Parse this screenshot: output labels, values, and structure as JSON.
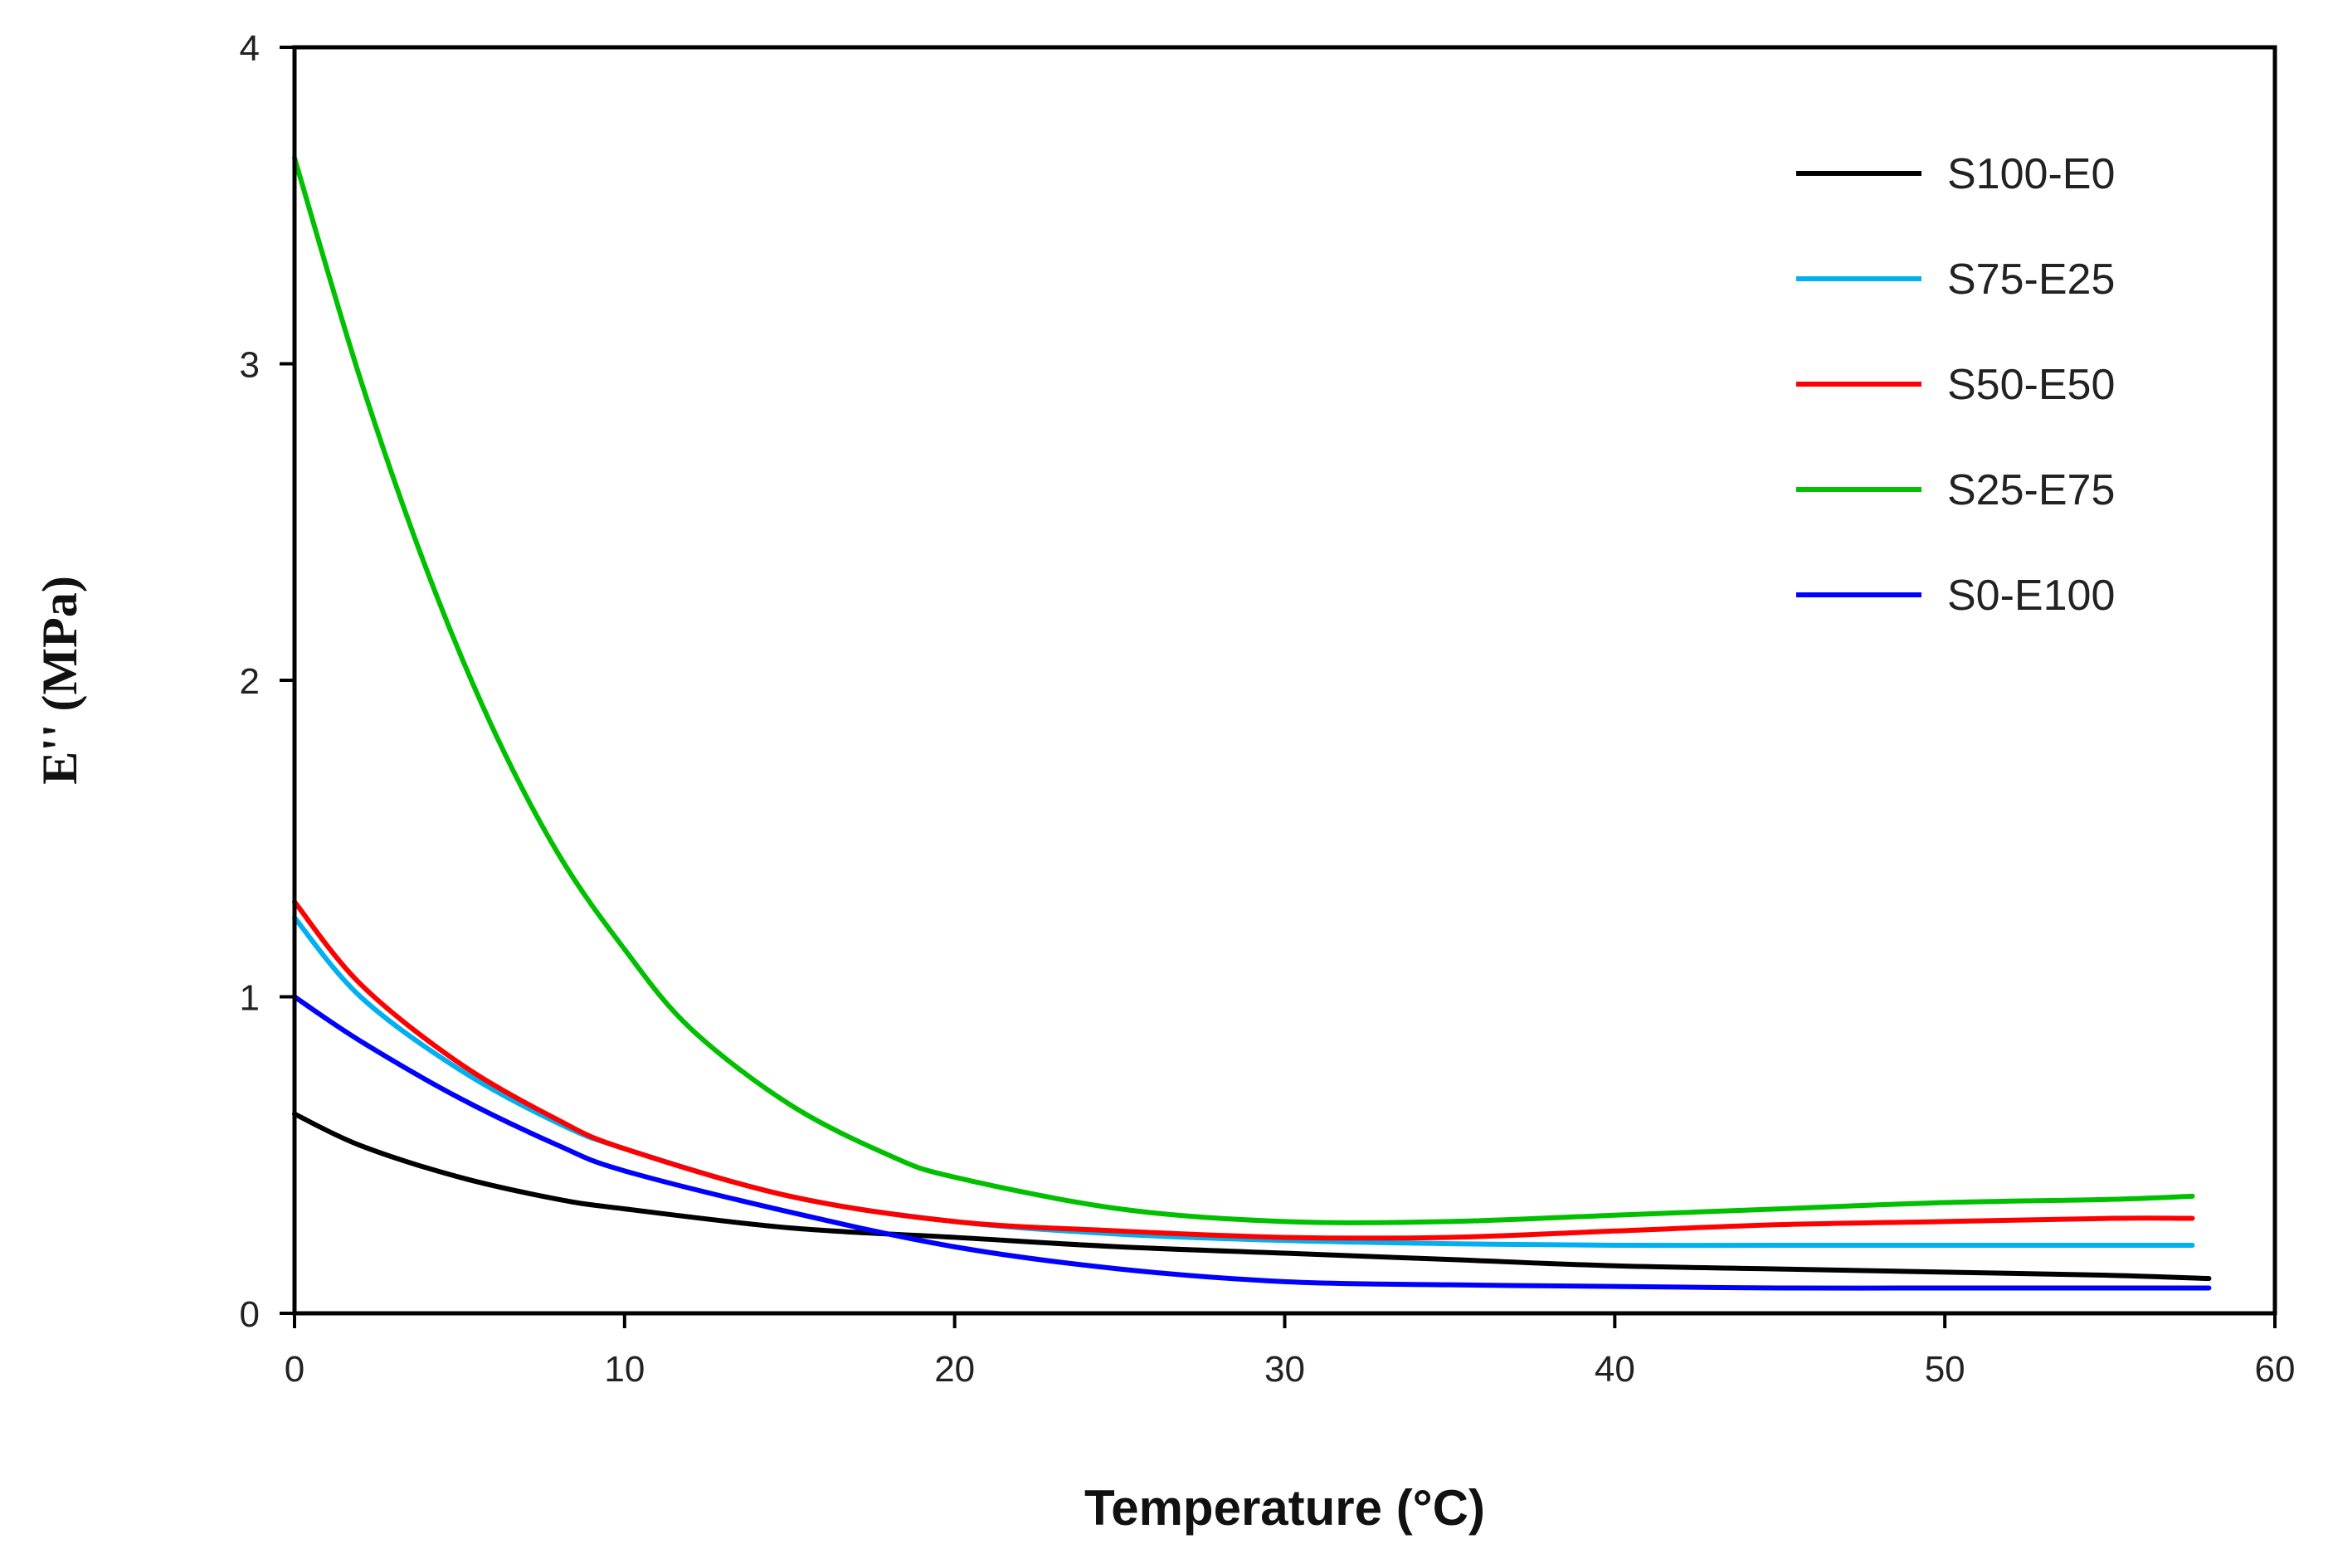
{
  "chart_data": {
    "type": "line",
    "title": "",
    "xlabel": "Temperature (°C)",
    "ylabel": "E'' (MPa)",
    "xlim": [
      0,
      60
    ],
    "ylim": [
      0,
      4
    ],
    "xticks": [
      0,
      10,
      20,
      30,
      40,
      50,
      60
    ],
    "yticks": [
      0,
      1,
      2,
      3,
      4
    ],
    "x_tick_labels": [
      "0",
      "10",
      "20",
      "30",
      "40",
      "50",
      "60"
    ],
    "y_tick_labels": [
      "0",
      "1",
      "2",
      "3",
      "4"
    ],
    "grid": false,
    "legend_position": "top-right",
    "series": [
      {
        "name": "S100-E0",
        "color": "#000000",
        "x": [
          0,
          2,
          5,
          8,
          10,
          15,
          20,
          25,
          30,
          35,
          40,
          45,
          50,
          55,
          58
        ],
        "y": [
          0.63,
          0.53,
          0.43,
          0.36,
          0.33,
          0.27,
          0.24,
          0.21,
          0.19,
          0.17,
          0.15,
          0.14,
          0.13,
          0.12,
          0.11
        ]
      },
      {
        "name": "S75-E25",
        "color": "#00B0F0",
        "x": [
          0,
          2,
          5,
          8,
          10,
          15,
          20,
          25,
          30,
          35,
          40,
          45,
          50,
          55,
          57.5
        ],
        "y": [
          1.25,
          1.0,
          0.77,
          0.6,
          0.52,
          0.37,
          0.29,
          0.25,
          0.23,
          0.22,
          0.215,
          0.215,
          0.215,
          0.215,
          0.215
        ]
      },
      {
        "name": "S50-E50",
        "color": "#FF0000",
        "x": [
          0,
          2,
          5,
          8,
          10,
          15,
          20,
          25,
          30,
          35,
          40,
          45,
          50,
          55,
          57.5
        ],
        "y": [
          1.3,
          1.04,
          0.79,
          0.61,
          0.52,
          0.37,
          0.29,
          0.26,
          0.24,
          0.24,
          0.26,
          0.28,
          0.29,
          0.3,
          0.3
        ]
      },
      {
        "name": "S25-E75",
        "color": "#00C000",
        "x": [
          0,
          2,
          4,
          6,
          8,
          10,
          12,
          15,
          18,
          20,
          25,
          30,
          35,
          40,
          45,
          50,
          55,
          57.5
        ],
        "y": [
          3.65,
          2.95,
          2.35,
          1.85,
          1.45,
          1.15,
          0.9,
          0.66,
          0.5,
          0.43,
          0.33,
          0.29,
          0.29,
          0.31,
          0.33,
          0.35,
          0.36,
          0.37
        ]
      },
      {
        "name": "S0-E100",
        "color": "#0000FF",
        "x": [
          0,
          2,
          5,
          8,
          10,
          15,
          20,
          25,
          30,
          35,
          40,
          45,
          50,
          55,
          58
        ],
        "y": [
          1.0,
          0.86,
          0.68,
          0.53,
          0.45,
          0.32,
          0.21,
          0.14,
          0.1,
          0.09,
          0.085,
          0.08,
          0.08,
          0.08,
          0.08
        ]
      }
    ]
  }
}
